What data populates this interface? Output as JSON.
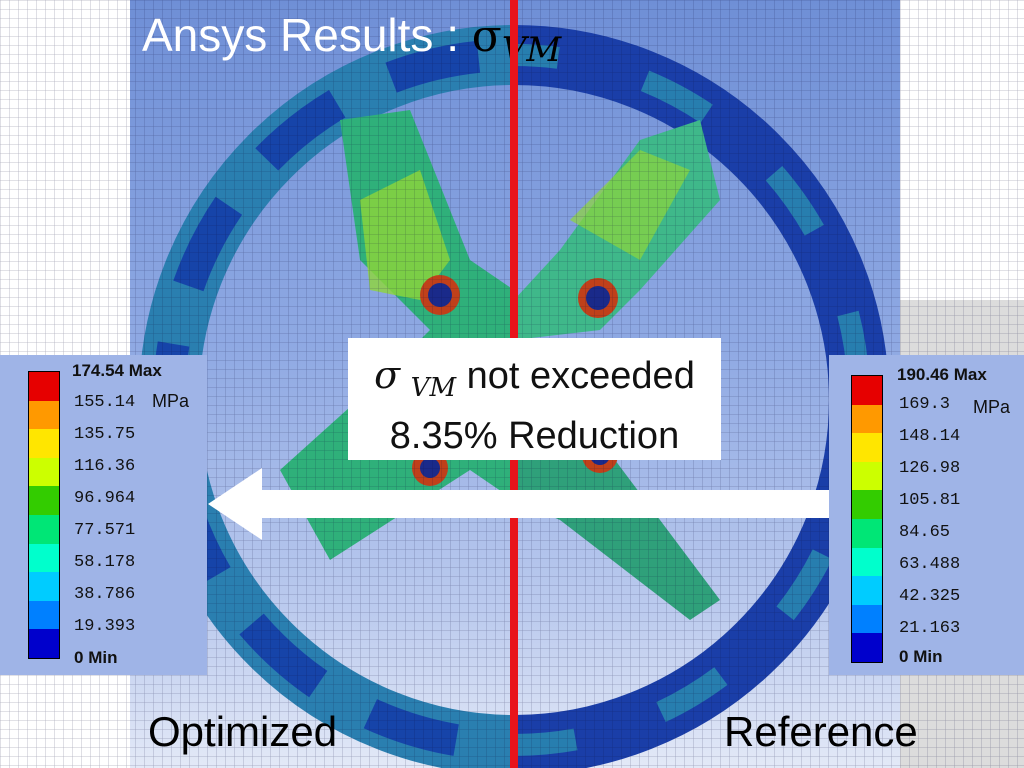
{
  "title": {
    "text": "Ansys Results : ",
    "symbol": "σ",
    "subscript": "VM"
  },
  "callout": {
    "sigma": "σ",
    "sub": "VM",
    "line1_rest": " not exceeded",
    "line2": "8.35% Reduction"
  },
  "labels": {
    "left": "Optimized",
    "right": "Reference"
  },
  "legend_left": {
    "max_value": "174.54",
    "max_word": "Max",
    "unit": "MPa",
    "ticks": [
      "155.14",
      "135.75",
      "116.36",
      "96.964",
      "77.571",
      "58.178",
      "38.786",
      "19.393"
    ],
    "min_value": "0",
    "min_word": "Min"
  },
  "legend_right": {
    "max_value": "190.46",
    "max_word": "Max",
    "unit": "MPa",
    "ticks": [
      "169.3",
      "148.14",
      "126.98",
      "105.81",
      "84.65",
      "63.488",
      "42.325",
      "21.163"
    ],
    "min_value": "0",
    "min_word": "Min"
  },
  "colors": {
    "scale": [
      "#e60000",
      "#ff9900",
      "#ffe600",
      "#ccff00",
      "#33cc00",
      "#00e676",
      "#00ffcc",
      "#00ccff",
      "#0080ff",
      "#0000cc"
    ],
    "divider": "#e8141b",
    "arrow": "#ffffff"
  }
}
